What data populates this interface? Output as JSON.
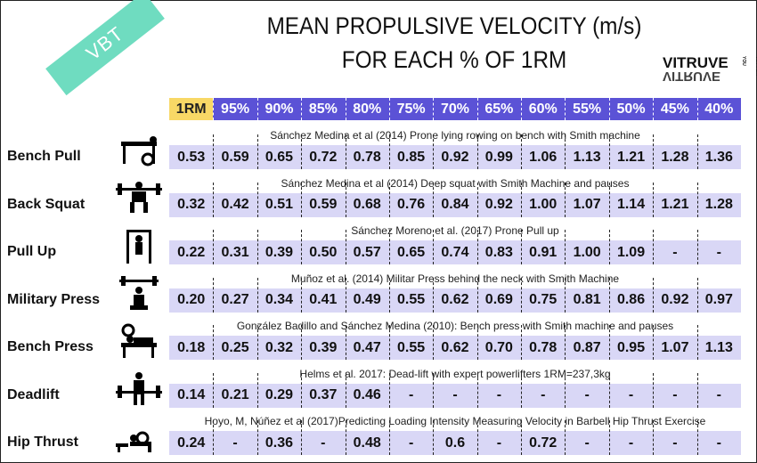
{
  "title_line1": "MEAN PROPULSIVE VELOCITY (m/s)",
  "title_line2": "FOR EACH % OF 1RM",
  "badge": "VBT",
  "logo": {
    "text": "VITRUVE",
    "tagline": "VBT FOR YOU"
  },
  "colors": {
    "rm_header": "#f8d866",
    "pct_header": "#5b52d6",
    "row_bg": "#d9d7f6",
    "badge": "#6fdcc0"
  },
  "columns": [
    "1RM",
    "95%",
    "90%",
    "85%",
    "80%",
    "75%",
    "70%",
    "65%",
    "60%",
    "55%",
    "50%",
    "45%",
    "40%"
  ],
  "rows": [
    {
      "exercise": "Bench Pull",
      "icon": "bench-pull-icon",
      "source": "Sánchez Medina et al (2014) Prone lying rowing on bench with Smith machine",
      "values": [
        "0.53",
        "0.59",
        "0.65",
        "0.72",
        "0.78",
        "0.85",
        "0.92",
        "0.99",
        "1.06",
        "1.13",
        "1.21",
        "1.28",
        "1.36"
      ]
    },
    {
      "exercise": "Back Squat",
      "icon": "back-squat-icon",
      "source": "Sánchez Medina et al (2014) Deep squat with Smith Machine and pauses",
      "values": [
        "0.32",
        "0.42",
        "0.51",
        "0.59",
        "0.68",
        "0.76",
        "0.84",
        "0.92",
        "1.00",
        "1.07",
        "1.14",
        "1.21",
        "1.28"
      ]
    },
    {
      "exercise": "Pull Up",
      "icon": "pull-up-icon",
      "source": "Sánchez Moreno et al. (2017) Prone Pull up",
      "values": [
        "0.22",
        "0.31",
        "0.39",
        "0.50",
        "0.57",
        "0.65",
        "0.74",
        "0.83",
        "0.91",
        "1.00",
        "1.09",
        "-",
        "-"
      ]
    },
    {
      "exercise": "Military Press",
      "icon": "military-press-icon",
      "source": "Muñoz et al. (2014) Militar Press behind the neck with Smith Machine",
      "values": [
        "0.20",
        "0.27",
        "0.34",
        "0.41",
        "0.49",
        "0.55",
        "0.62",
        "0.69",
        "0.75",
        "0.81",
        "0.86",
        "0.92",
        "0.97"
      ]
    },
    {
      "exercise": "Bench Press",
      "icon": "bench-press-icon",
      "source": "González Badillo and Sánchez Medina (2010): Bench press with Smith machine and pauses",
      "values": [
        "0.18",
        "0.25",
        "0.32",
        "0.39",
        "0.47",
        "0.55",
        "0.62",
        "0.70",
        "0.78",
        "0.87",
        "0.95",
        "1.07",
        "1.13"
      ]
    },
    {
      "exercise": "Deadlift",
      "icon": "deadlift-icon",
      "source": "Helms et al. 2017: Dead-lift with expert powerlifters 1RM=237,3kg",
      "values": [
        "0.14",
        "0.21",
        "0.29",
        "0.37",
        "0.46",
        "-",
        "-",
        "-",
        "-",
        "-",
        "-",
        "-",
        "-"
      ]
    },
    {
      "exercise": "Hip Thrust",
      "icon": "hip-thrust-icon",
      "source": "Hoyo, M, Núñez et al (2017)Predicting Loading Intensity Measuring Velocity in Barbell Hip Thrust Exercise",
      "values": [
        "0.24",
        "-",
        "0.36",
        "-",
        "0.48",
        "-",
        "0.6",
        "-",
        "0.72",
        "-",
        "-",
        "-",
        "-"
      ]
    }
  ]
}
